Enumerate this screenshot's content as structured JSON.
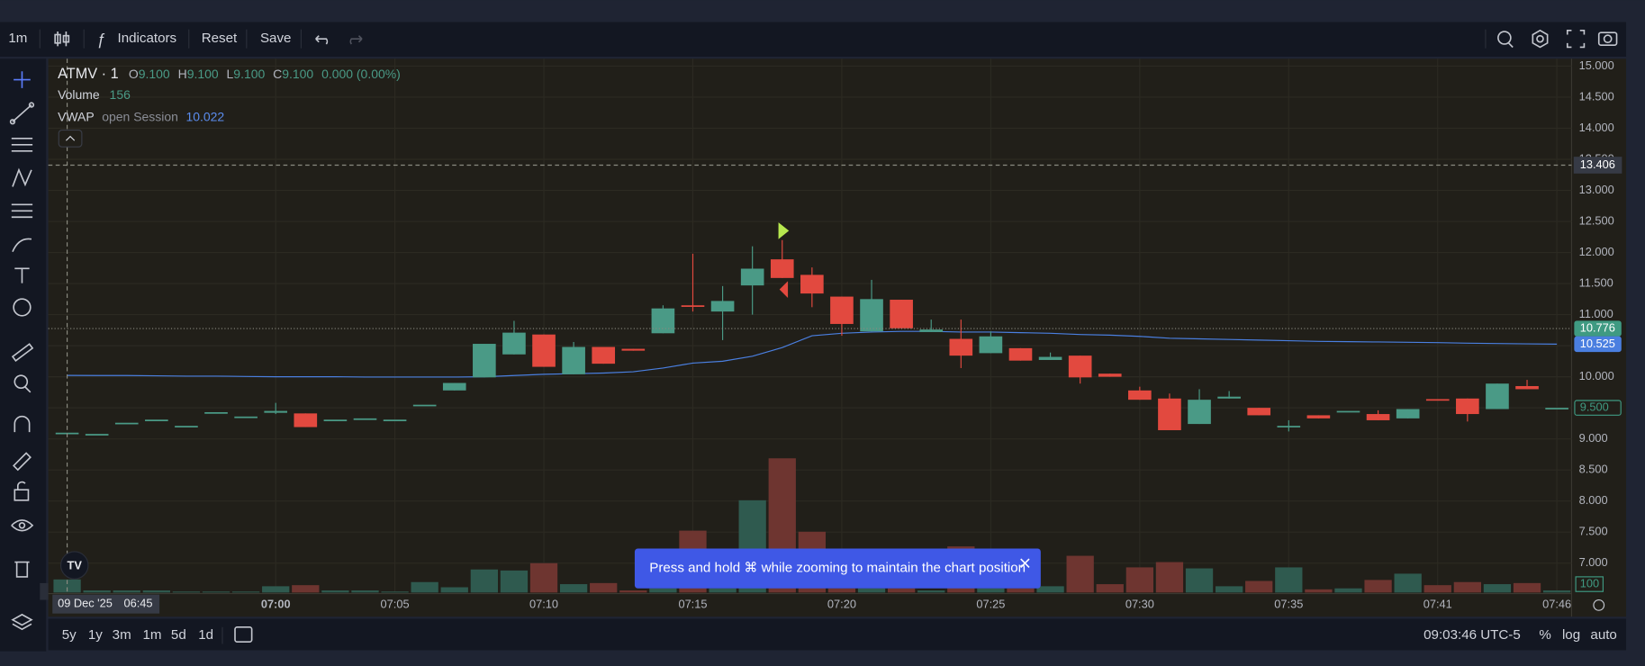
{
  "toolbar": {
    "interval": "1m",
    "indicators": "Indicators",
    "reset": "Reset",
    "save": "Save"
  },
  "legend": {
    "symbol": "ATMV · 1",
    "o_label": "O",
    "open": "9.100",
    "h_label": "H",
    "high": "9.100",
    "l_label": "L",
    "low": "9.100",
    "c_label": "C",
    "close": "9.100",
    "change": "0.000 (0.00%)",
    "volume_label": "Volume",
    "volume": "156",
    "vwap_label": "VWAP",
    "vwap_setting": "open Session",
    "vwap": "10.022"
  },
  "crosshair": {
    "date": "09 Dec '25",
    "time": "06:45",
    "price": {
      "value": 13.406,
      "label": "13.406"
    }
  },
  "toast": {
    "text": "Press and hold ⌘ while zooming to maintain the chart position"
  },
  "bottom_bar": {
    "ranges": [
      "5y",
      "1y",
      "3m",
      "1m",
      "5d",
      "1d"
    ],
    "clock": "09:03:46 UTC-5",
    "percent": "%",
    "log": "log",
    "auto": "auto"
  },
  "chart_data": {
    "type": "candlestick",
    "categories": [
      null,
      null,
      null,
      null,
      null,
      null,
      null,
      "07:00",
      null,
      null,
      null,
      "07:05",
      null,
      null,
      null,
      null,
      "07:10",
      null,
      null,
      null,
      null,
      "07:15",
      null,
      null,
      null,
      null,
      "07:20",
      null,
      null,
      null,
      null,
      "07:25",
      null,
      null,
      null,
      null,
      "07:30",
      null,
      null,
      null,
      null,
      "07:35",
      null,
      null,
      null,
      null,
      "07:41",
      null,
      null,
      null,
      "07:46"
    ],
    "open": [
      9.1,
      9.08,
      9.26,
      9.31,
      9.21,
      9.43,
      9.36,
      9.42,
      9.41,
      9.31,
      9.33,
      9.31,
      9.55,
      9.78,
      9.99,
      10.36,
      10.68,
      10.04,
      10.48,
      10.45,
      10.7,
      11.15,
      11.05,
      11.47,
      11.89,
      11.64,
      11.29,
      10.73,
      11.24,
      10.72,
      10.61,
      10.38,
      10.46,
      10.27,
      10.34,
      10.05,
      9.78,
      9.65,
      9.24,
      9.65,
      9.5,
      9.21,
      9.38,
      9.45,
      9.4,
      9.33,
      9.64,
      9.65,
      9.48,
      9.85,
      9.5
    ],
    "high": [
      9.1,
      9.08,
      9.26,
      9.31,
      9.21,
      9.43,
      9.36,
      9.58,
      9.41,
      9.31,
      9.33,
      9.31,
      9.55,
      9.9,
      10.53,
      10.9,
      10.68,
      10.56,
      10.48,
      10.45,
      11.15,
      11.98,
      11.46,
      12.1,
      12.2,
      11.76,
      11.29,
      11.56,
      11.24,
      10.92,
      10.92,
      10.73,
      10.46,
      10.39,
      10.34,
      10.05,
      9.84,
      9.73,
      9.8,
      9.77,
      9.5,
      9.3,
      9.38,
      9.45,
      9.46,
      9.48,
      9.64,
      9.65,
      9.89,
      9.95,
      9.5
    ],
    "low": [
      9.1,
      9.08,
      9.26,
      9.31,
      9.21,
      9.43,
      9.36,
      9.4,
      9.19,
      9.31,
      9.33,
      9.31,
      9.55,
      9.78,
      9.99,
      10.36,
      10.16,
      10.04,
      10.21,
      10.42,
      10.7,
      11.05,
      10.59,
      11.0,
      11.59,
      11.12,
      10.66,
      10.73,
      10.78,
      10.72,
      10.14,
      10.38,
      10.26,
      10.27,
      9.89,
      10.0,
      9.63,
      9.14,
      9.24,
      9.65,
      9.38,
      9.12,
      9.33,
      9.45,
      9.3,
      9.33,
      9.62,
      9.28,
      9.48,
      9.8,
      9.5
    ],
    "close": [
      9.1,
      9.08,
      9.26,
      9.31,
      9.21,
      9.43,
      9.36,
      9.45,
      9.19,
      9.31,
      9.33,
      9.31,
      9.55,
      9.9,
      10.53,
      10.71,
      10.16,
      10.48,
      10.21,
      10.42,
      11.1,
      11.13,
      11.22,
      11.74,
      11.59,
      11.34,
      10.85,
      11.25,
      10.78,
      10.76,
      10.34,
      10.65,
      10.26,
      10.32,
      9.99,
      10.0,
      9.63,
      9.14,
      9.63,
      9.68,
      9.38,
      9.21,
      9.33,
      9.45,
      9.3,
      9.48,
      9.62,
      9.4,
      9.89,
      9.8,
      9.5
    ],
    "volume": [
      156,
      25,
      25,
      25,
      12,
      12,
      12,
      75,
      88,
      25,
      25,
      12,
      125,
      63,
      275,
      263,
      350,
      100,
      113,
      25,
      50,
      738,
      50,
      1100,
      1600,
      725,
      50,
      50,
      50,
      25,
      550,
      50,
      50,
      75,
      438,
      100,
      300,
      363,
      288,
      75,
      138,
      300,
      38,
      50,
      150,
      225,
      88,
      125,
      100,
      113,
      25
    ],
    "vwap": [
      10.022,
      10.02,
      10.02,
      10.015,
      10.01,
      10.01,
      10.005,
      10.0,
      10.0,
      10.0,
      9.995,
      9.995,
      9.995,
      9.995,
      10.0,
      10.02,
      10.04,
      10.05,
      10.06,
      10.08,
      10.14,
      10.22,
      10.25,
      10.33,
      10.47,
      10.66,
      10.7,
      10.72,
      10.73,
      10.73,
      10.72,
      10.72,
      10.71,
      10.7,
      10.68,
      10.67,
      10.65,
      10.62,
      10.61,
      10.6,
      10.59,
      10.58,
      10.57,
      10.565,
      10.56,
      10.555,
      10.55,
      10.54,
      10.535,
      10.53,
      10.525
    ],
    "ylim": [
      6.527,
      15.118
    ],
    "yticks": [
      {
        "value": 7,
        "label": "7.000"
      },
      {
        "value": 7.5,
        "label": "7.500"
      },
      {
        "value": 8,
        "label": "8.000"
      },
      {
        "value": 8.5,
        "label": "8.500"
      },
      {
        "value": 9,
        "label": "9.000"
      },
      {
        "value": 9.5,
        "label": "9.500"
      },
      {
        "value": 10,
        "label": "10.000"
      },
      {
        "value": 10.5,
        "label": "10.500"
      },
      {
        "value": 11,
        "label": "11.000"
      },
      {
        "value": 11.5,
        "label": "11.500"
      },
      {
        "value": 12,
        "label": "12.000"
      },
      {
        "value": 12.5,
        "label": "12.500"
      },
      {
        "value": 13,
        "label": "13.000"
      },
      {
        "value": 13.5,
        "label": "13.500"
      },
      {
        "value": 14,
        "label": "14.000"
      },
      {
        "value": 14.5,
        "label": "14.500"
      },
      {
        "value": 15,
        "label": "15.000"
      }
    ],
    "vlim": [
      0,
      1600
    ],
    "vticks": [
      100
    ],
    "price_labels": [
      {
        "value": 10.776,
        "label": "10.776",
        "color": "#3f9a82",
        "outline": false
      },
      {
        "value": 10.525,
        "label": "10.525",
        "color": "#4a7fe0",
        "outline": false
      },
      {
        "value": 9.5,
        "label": "9.500",
        "color": "#3f9a82",
        "outline": true
      }
    ],
    "up_color": "#4a9a86",
    "down_color": "#e2493f",
    "volume_up_color": "#2f5a4f",
    "volume_down_color": "#6e3530",
    "vwap_color": "#4a7fe0",
    "grid": true
  }
}
